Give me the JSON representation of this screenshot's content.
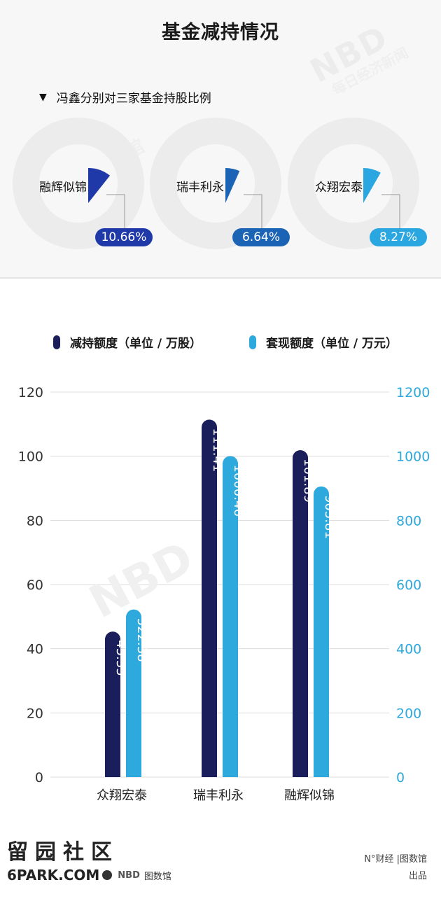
{
  "header": {
    "title": "基金减持情况"
  },
  "pie_section": {
    "subtitle": "冯鑫分别对三家基金持股比例",
    "funds": [
      {
        "name": "融辉似锦",
        "pct_label": "10.66%",
        "value": 10.66,
        "color": "#1f3aa8"
      },
      {
        "name": "瑞丰利永",
        "pct_label": "6.64%",
        "value": 6.64,
        "color": "#1b63b5"
      },
      {
        "name": "众翔宏泰",
        "pct_label": "8.27%",
        "value": 8.27,
        "color": "#2aa6e0"
      }
    ]
  },
  "legend": {
    "series1": "减持额度（单位 / 万股）",
    "series2": "套现额度（单位 / 万元）"
  },
  "chart_data": {
    "type": "bar",
    "categories": [
      "众翔宏泰",
      "瑞丰利永",
      "融辉似锦"
    ],
    "series": [
      {
        "name": "减持额度（单位 / 万股）",
        "values": [
          45.35,
          111.41,
          101.89
        ],
        "labels": [
          "45.35",
          "111.41",
          "101.89"
        ],
        "color": "#1a1f5c",
        "axis": "left"
      },
      {
        "name": "套现额度（单位 / 万元）",
        "values": [
          522.38,
          1000.46,
          905.81
        ],
        "labels": [
          "522.38",
          "1000.46",
          "905.81"
        ],
        "color": "#2ea9de",
        "axis": "right"
      }
    ],
    "y_left": {
      "ticks": [
        "0",
        "20",
        "40",
        "60",
        "80",
        "100",
        "120"
      ],
      "lim": [
        0,
        120
      ]
    },
    "y_right": {
      "ticks": [
        "0",
        "200",
        "400",
        "600",
        "800",
        "1000",
        "1200"
      ],
      "lim": [
        0,
        1200
      ]
    },
    "grid": true,
    "legend_position": "top"
  },
  "watermark": {
    "brand": "NBD",
    "sub": "每日经济新闻",
    "tuhao": "图数馆"
  },
  "footer": {
    "brand": "NBD",
    "site_text": "留园社区",
    "site_url": "6PARK.COM",
    "logo_text": "图数馆",
    "credit_line1": "N°财经 |图数馆",
    "credit_line2": "出品"
  },
  "colors": {
    "dark_bar": "#1a1f5c",
    "light_bar": "#2ea9de",
    "grid": "#dcdcdc",
    "right_axis": "#2ea9de"
  }
}
